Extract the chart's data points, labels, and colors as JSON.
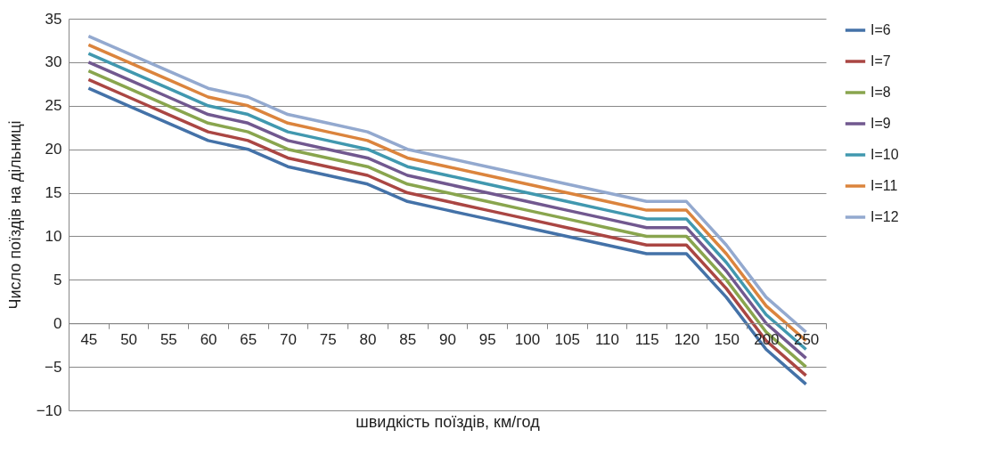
{
  "chart_data": {
    "type": "line",
    "xlabel": "швидкість поїздів, км/год",
    "ylabel": "Число поїздів на дільниці",
    "categories": [
      "45",
      "50",
      "55",
      "60",
      "65",
      "70",
      "75",
      "80",
      "85",
      "90",
      "95",
      "100",
      "105",
      "110",
      "115",
      "120",
      "150",
      "200",
      "250"
    ],
    "series": [
      {
        "name": "I=6",
        "color": "#4472a8",
        "values": [
          27,
          25,
          23,
          21,
          20,
          18,
          17,
          16,
          14,
          13,
          12,
          11,
          10,
          9,
          8,
          8,
          3,
          -3,
          -7
        ]
      },
      {
        "name": "I=7",
        "color": "#aa4643",
        "values": [
          28,
          26,
          24,
          22,
          21,
          19,
          18,
          17,
          15,
          14,
          13,
          12,
          11,
          10,
          9,
          9,
          4,
          -2,
          -6
        ]
      },
      {
        "name": "I=8",
        "color": "#89a54e",
        "values": [
          29,
          27,
          25,
          23,
          22,
          20,
          19,
          18,
          16,
          15,
          14,
          13,
          12,
          11,
          10,
          10,
          5,
          -1,
          -5
        ]
      },
      {
        "name": "I=9",
        "color": "#71588f",
        "values": [
          30,
          28,
          26,
          24,
          23,
          21,
          20,
          19,
          17,
          16,
          15,
          14,
          13,
          12,
          11,
          11,
          6,
          0,
          -4
        ]
      },
      {
        "name": "I=10",
        "color": "#4198af",
        "values": [
          31,
          29,
          27,
          25,
          24,
          22,
          21,
          20,
          18,
          17,
          16,
          15,
          14,
          13,
          12,
          12,
          7,
          1,
          -3
        ]
      },
      {
        "name": "I=11",
        "color": "#db843d",
        "values": [
          32,
          30,
          28,
          26,
          25,
          23,
          22,
          21,
          19,
          18,
          17,
          16,
          15,
          14,
          13,
          13,
          8,
          2,
          -2
        ]
      },
      {
        "name": "I=12",
        "color": "#93a9cf",
        "values": [
          33,
          31,
          29,
          27,
          26,
          24,
          23,
          22,
          20,
          19,
          18,
          17,
          16,
          15,
          14,
          14,
          9,
          3,
          -1
        ]
      }
    ],
    "ylim": [
      -10,
      35
    ],
    "yticks": [
      -10,
      -5,
      0,
      5,
      10,
      15,
      20,
      25,
      30,
      35
    ],
    "grid": "y",
    "legend": "right",
    "marker": "none",
    "line_style": "solid"
  }
}
